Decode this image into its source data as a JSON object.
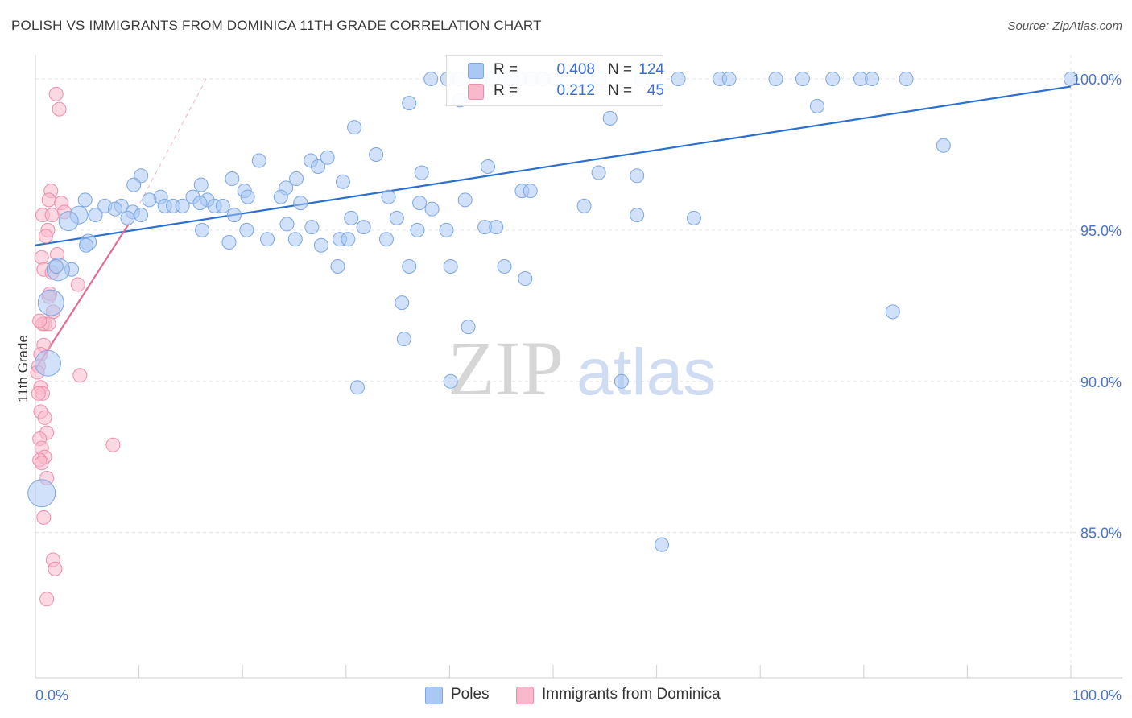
{
  "title": "POLISH VS IMMIGRANTS FROM DOMINICA 11TH GRADE CORRELATION CHART",
  "source": "Source: ZipAtlas.com",
  "watermark": {
    "zip": "ZIP",
    "atlas": "atlas"
  },
  "legend_top": [
    {
      "r_label": "R =",
      "r_value": "0.408",
      "n_label": "N =",
      "n_value": "124",
      "color": "#a9c8f4"
    },
    {
      "r_label": "R =",
      "r_value": "0.212",
      "n_label": "N =",
      "n_value": "45",
      "color": "#f9b8cb"
    }
  ],
  "legend_bottom": [
    {
      "label": "Poles",
      "color": "#a9c8f4"
    },
    {
      "label": "Immigrants from Dominica",
      "color": "#f9b8cb"
    }
  ],
  "chart_data": {
    "type": "scatter",
    "title": "POLISH VS IMMIGRANTS FROM DOMINICA 11TH GRADE CORRELATION CHART",
    "xlabel": "",
    "ylabel": "11th Grade",
    "xlim": [
      0,
      100
    ],
    "ylim": [
      80.2,
      100.8
    ],
    "x_tick_labels": [
      {
        "value": 0,
        "label": "0.0%"
      },
      {
        "value": 100,
        "label": "100.0%"
      }
    ],
    "x_minor_ticks": [
      10,
      20,
      30,
      40,
      50,
      60,
      70,
      80,
      90,
      100
    ],
    "y_ticks": [
      {
        "value": 100,
        "label": "100.0%"
      },
      {
        "value": 95,
        "label": "95.0%"
      },
      {
        "value": 90,
        "label": "90.0%"
      },
      {
        "value": 85,
        "label": "85.0%"
      }
    ],
    "grid": true,
    "series": [
      {
        "name": "Poles",
        "color": "#a9c8f4",
        "stroke": "#7ea6e0",
        "trend": {
          "x0": 0,
          "y0": 94.5,
          "x1": 100,
          "y1": 99.75,
          "color": "#2b6fd1"
        },
        "points": [
          [
            38.2,
            100.0
          ],
          [
            39.8,
            100.0
          ],
          [
            40.9,
            100.0
          ],
          [
            42.1,
            100.0
          ],
          [
            43.0,
            100.0
          ],
          [
            44.1,
            100.0
          ],
          [
            45.6,
            100.0
          ],
          [
            46.8,
            100.0
          ],
          [
            47.9,
            100.0
          ],
          [
            49.0,
            100.0
          ],
          [
            50.2,
            100.0
          ],
          [
            53.2,
            100.0
          ],
          [
            54.5,
            100.0
          ],
          [
            58.5,
            100.0
          ],
          [
            59.8,
            100.0
          ],
          [
            62.1,
            100.0
          ],
          [
            66.1,
            100.0
          ],
          [
            67.0,
            100.0
          ],
          [
            71.5,
            100.0
          ],
          [
            74.1,
            100.0
          ],
          [
            77.0,
            100.0
          ],
          [
            79.7,
            100.0
          ],
          [
            80.8,
            100.0
          ],
          [
            84.1,
            100.0
          ],
          [
            100.0,
            100.0
          ],
          [
            46.0,
            100.0
          ],
          [
            36.1,
            99.2
          ],
          [
            41.0,
            99.3
          ],
          [
            75.5,
            99.1
          ],
          [
            55.5,
            98.7
          ],
          [
            30.8,
            98.4
          ],
          [
            87.7,
            97.8
          ],
          [
            26.6,
            97.3
          ],
          [
            27.3,
            97.1
          ],
          [
            32.9,
            97.5
          ],
          [
            28.2,
            97.4
          ],
          [
            21.6,
            97.3
          ],
          [
            43.7,
            97.1
          ],
          [
            37.3,
            96.9
          ],
          [
            54.4,
            96.9
          ],
          [
            58.1,
            96.8
          ],
          [
            25.2,
            96.7
          ],
          [
            19.0,
            96.7
          ],
          [
            29.7,
            96.6
          ],
          [
            10.2,
            96.8
          ],
          [
            9.5,
            96.5
          ],
          [
            16.0,
            96.5
          ],
          [
            24.2,
            96.4
          ],
          [
            20.2,
            96.3
          ],
          [
            12.1,
            96.1
          ],
          [
            15.2,
            96.1
          ],
          [
            11.0,
            96.0
          ],
          [
            16.6,
            96.0
          ],
          [
            20.5,
            96.1
          ],
          [
            23.7,
            96.1
          ],
          [
            34.1,
            96.1
          ],
          [
            47.0,
            96.3
          ],
          [
            47.8,
            96.3
          ],
          [
            41.5,
            96.0
          ],
          [
            25.6,
            95.9
          ],
          [
            37.1,
            95.9
          ],
          [
            4.8,
            96.0
          ],
          [
            6.7,
            95.8
          ],
          [
            8.3,
            95.8
          ],
          [
            12.5,
            95.8
          ],
          [
            13.3,
            95.8
          ],
          [
            14.2,
            95.8
          ],
          [
            15.9,
            95.9
          ],
          [
            17.3,
            95.8
          ],
          [
            18.1,
            95.8
          ],
          [
            7.7,
            95.7
          ],
          [
            9.4,
            95.6
          ],
          [
            10.2,
            95.5
          ],
          [
            19.2,
            95.5
          ],
          [
            30.5,
            95.4
          ],
          [
            34.9,
            95.4
          ],
          [
            38.3,
            95.7
          ],
          [
            53.0,
            95.8
          ],
          [
            58.1,
            95.5
          ],
          [
            63.6,
            95.4
          ],
          [
            4.2,
            95.5
          ],
          [
            5.8,
            95.5
          ],
          [
            8.9,
            95.4
          ],
          [
            3.2,
            95.3
          ],
          [
            16.1,
            95.0
          ],
          [
            20.4,
            95.0
          ],
          [
            24.3,
            95.2
          ],
          [
            26.7,
            95.1
          ],
          [
            31.7,
            95.1
          ],
          [
            39.7,
            95.0
          ],
          [
            43.4,
            95.1
          ],
          [
            44.5,
            95.1
          ],
          [
            36.9,
            95.0
          ],
          [
            33.9,
            94.7
          ],
          [
            29.4,
            94.7
          ],
          [
            30.2,
            94.7
          ],
          [
            25.1,
            94.7
          ],
          [
            22.4,
            94.7
          ],
          [
            18.7,
            94.6
          ],
          [
            27.6,
            94.5
          ],
          [
            5.1,
            94.6
          ],
          [
            4.9,
            94.5
          ],
          [
            29.2,
            93.8
          ],
          [
            36.1,
            93.8
          ],
          [
            40.1,
            93.8
          ],
          [
            45.3,
            93.8
          ],
          [
            47.3,
            93.4
          ],
          [
            3.5,
            93.7
          ],
          [
            2.2,
            93.7
          ],
          [
            2.0,
            93.8
          ],
          [
            1.5,
            92.6
          ],
          [
            35.4,
            92.6
          ],
          [
            82.8,
            92.3
          ],
          [
            41.8,
            91.8
          ],
          [
            35.6,
            91.4
          ],
          [
            1.2,
            90.6
          ],
          [
            31.1,
            89.8
          ],
          [
            40.1,
            90.0
          ],
          [
            56.6,
            90.0
          ],
          [
            0.6,
            86.3
          ],
          [
            60.5,
            84.6
          ]
        ]
      },
      {
        "name": "Immigrants from Dominica",
        "color": "#f9b8cb",
        "stroke": "#ec8eaa",
        "trend": {
          "x0": 0,
          "y0": 90.4,
          "x1": 9,
          "y1": 95.2,
          "color": "#e46b94",
          "ext_x1": 16.5,
          "ext_y1": 100.0
        },
        "points": [
          [
            2.0,
            99.5
          ],
          [
            2.3,
            99.0
          ],
          [
            1.5,
            96.3
          ],
          [
            1.3,
            96.0
          ],
          [
            2.5,
            95.9
          ],
          [
            2.8,
            95.6
          ],
          [
            0.7,
            95.5
          ],
          [
            1.6,
            95.5
          ],
          [
            1.2,
            95.0
          ],
          [
            2.1,
            94.2
          ],
          [
            0.6,
            94.1
          ],
          [
            0.8,
            93.7
          ],
          [
            1.6,
            93.6
          ],
          [
            4.1,
            93.2
          ],
          [
            1.4,
            92.9
          ],
          [
            1.3,
            92.8
          ],
          [
            1.7,
            92.3
          ],
          [
            0.9,
            91.9
          ],
          [
            0.7,
            91.9
          ],
          [
            1.3,
            91.9
          ],
          [
            0.8,
            91.2
          ],
          [
            0.5,
            90.9
          ],
          [
            0.3,
            90.5
          ],
          [
            4.3,
            90.2
          ],
          [
            0.5,
            89.8
          ],
          [
            0.7,
            89.6
          ],
          [
            0.3,
            89.6
          ],
          [
            0.5,
            89.0
          ],
          [
            0.9,
            88.8
          ],
          [
            1.1,
            88.3
          ],
          [
            0.4,
            88.1
          ],
          [
            7.5,
            87.9
          ],
          [
            0.6,
            87.8
          ],
          [
            0.9,
            87.5
          ],
          [
            0.4,
            87.4
          ],
          [
            0.6,
            87.3
          ],
          [
            1.1,
            86.8
          ],
          [
            0.8,
            85.5
          ],
          [
            1.7,
            84.1
          ],
          [
            1.9,
            83.8
          ],
          [
            1.1,
            82.8
          ],
          [
            0.2,
            90.3
          ],
          [
            0.4,
            92.0
          ],
          [
            1.0,
            94.8
          ]
        ]
      }
    ]
  }
}
